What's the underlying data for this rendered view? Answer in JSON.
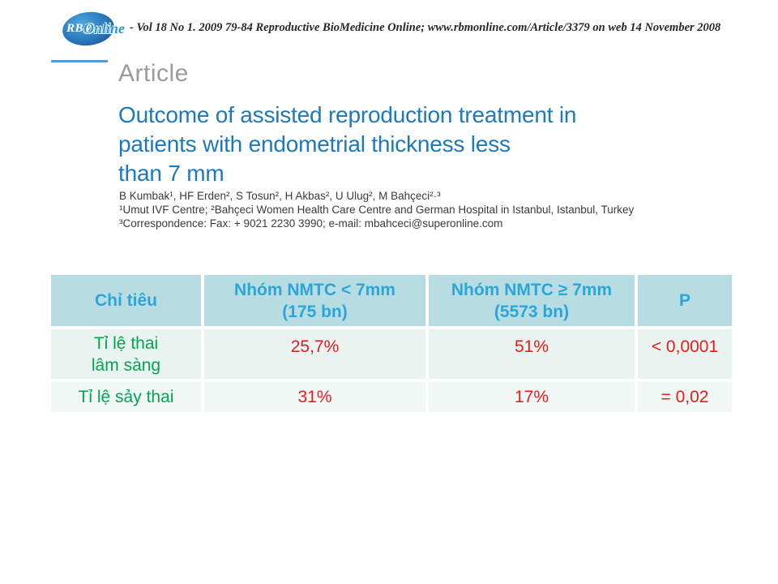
{
  "journal": {
    "logo_rbm": "RBM",
    "logo_online": "Online",
    "citation": "- Vol 18 No 1. 2009 79-84 Reproductive BioMedicine Online; www.rbmonline.com/Article/3379 on web 14 November 2008"
  },
  "article": {
    "section_label": "Article",
    "title_lines": [
      "Outcome of assisted reproduction treatment in",
      "patients with endometrial thickness less",
      "than 7 mm"
    ],
    "authors": "B Kumbak¹, HF Erden², S Tosun², H Akbas², U Ulug², M Bahçeci²·³",
    "affiliations": "¹Umut IVF Centre; ²Bahçeci Women Health Care Centre and German Hospital in Istanbul, Istanbul, Turkey",
    "correspondence": "³Correspondence: Fax: + 9021 2230 3990; e-mail: mbahceci@superonline.com"
  },
  "table": {
    "headers": [
      {
        "line1": "Chỉ tiêu",
        "line2": ""
      },
      {
        "line1": "Nhóm NMTC < 7mm",
        "line2": "(175 bn)"
      },
      {
        "line1": "Nhóm NMTC ≥ 7mm",
        "line2": "(5573 bn)"
      },
      {
        "line1": "P",
        "line2": ""
      }
    ],
    "rows": [
      {
        "label_line1": "Tỉ lệ thai",
        "label_line2": "lâm sàng",
        "group_lt7": "25,7%",
        "group_ge7": "51%",
        "p": "< 0,0001"
      },
      {
        "label_line1": "Tỉ lệ sảy thai",
        "label_line2": "",
        "group_lt7": "31%",
        "group_ge7": "17%",
        "p": "= 0,02"
      }
    ]
  },
  "colors": {
    "title_blue": "#1b79c0",
    "header_text_blue": "#2ba6db",
    "header_bg_teal": "#b7dde2",
    "row1_bg": "#e9f3f0",
    "row2_bg": "#f0f7f5",
    "label_green": "#00a651",
    "value_red": "#e81c1c",
    "rule_blue": "#5b9bd5",
    "logo_blue": "#1d5fa9"
  }
}
